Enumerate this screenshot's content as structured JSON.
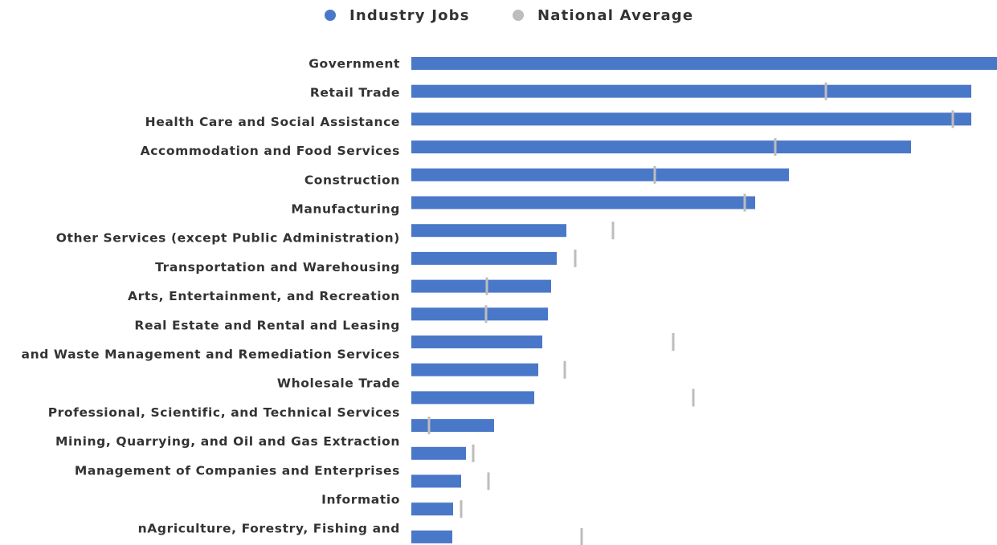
{
  "chart_data": {
    "type": "bar",
    "orientation": "horizontal",
    "categories": [
      "Government",
      "Retail Trade",
      "Health Care and Social Assistance",
      "Accommodation and Food Services",
      "Construction",
      "Manufacturing",
      "Other Services (except Public Administration)",
      "Transportation and Warehousing",
      "Arts, Entertainment, and Recreation",
      "Real Estate and Rental and Leasing",
      "and Waste Management and Remediation Services",
      "Wholesale Trade",
      "Professional, Scientific, and Technical Services",
      "Mining, Quarrying, and Oil and Gas Extraction",
      "Management of Companies and Enterprises",
      "Informatio",
      "nAgriculture, Forestry, Fishing and",
      null
    ],
    "series": [
      {
        "name": "Industry Jobs",
        "color": "#4a78c8",
        "values": [
          729,
          697,
          697,
          622,
          470,
          428,
          193,
          181,
          174,
          170,
          163,
          158,
          153,
          103,
          68,
          62,
          52,
          51
        ]
      },
      {
        "name": "National Average",
        "color": "#bdbdbd",
        "values": [
          null,
          516,
          674,
          453,
          303,
          415,
          251,
          204,
          94,
          93,
          326,
          191,
          351,
          22,
          77,
          96,
          62,
          212
        ]
      }
    ]
  }
}
